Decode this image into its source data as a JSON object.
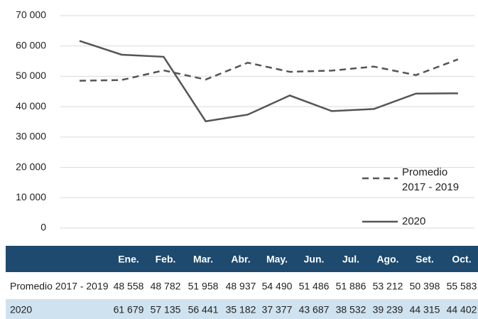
{
  "chart_data": {
    "type": "line",
    "categories": [
      "Ene.",
      "Feb.",
      "Mar.",
      "Abr.",
      "May.",
      "Jun.",
      "Jul.",
      "Ago.",
      "Set.",
      "Oct."
    ],
    "series": [
      {
        "name": "Promedio 2017 - 2019",
        "color": "#555555",
        "line_style": "dashed",
        "values": [
          48558,
          48782,
          51958,
          48937,
          54490,
          51486,
          51886,
          53212,
          50398,
          55583
        ],
        "value_labels": [
          "48 558",
          "48 782",
          "51 958",
          "48 937",
          "54 490",
          "51 486",
          "51 886",
          "53 212",
          "50 398",
          "55 583"
        ]
      },
      {
        "name": "2020",
        "color": "#555555",
        "line_style": "solid",
        "values": [
          61679,
          57135,
          56441,
          35182,
          37377,
          43687,
          38532,
          39239,
          44315,
          44402
        ],
        "value_labels": [
          "61 679",
          "57 135",
          "56 441",
          "35 182",
          "37 377",
          "43 687",
          "38 532",
          "39 239",
          "44 315",
          "44 402"
        ]
      }
    ],
    "ylim": [
      0,
      70000
    ],
    "yticks": [
      0,
      {
        "value": 10000,
        "label": "10 000"
      },
      {
        "value": 20000,
        "label": "20 000"
      },
      {
        "value": 30000,
        "label": "30 000"
      },
      {
        "value": 40000,
        "label": "40 000"
      },
      {
        "value": 50000,
        "label": "50 000"
      },
      {
        "value": 60000,
        "label": "60 000"
      },
      {
        "value": 70000,
        "label": "70 000"
      }
    ],
    "grid": true,
    "legend": "right",
    "table_header_color": "#1d4a6e",
    "table_stripe_color": "#cfe2ef"
  }
}
